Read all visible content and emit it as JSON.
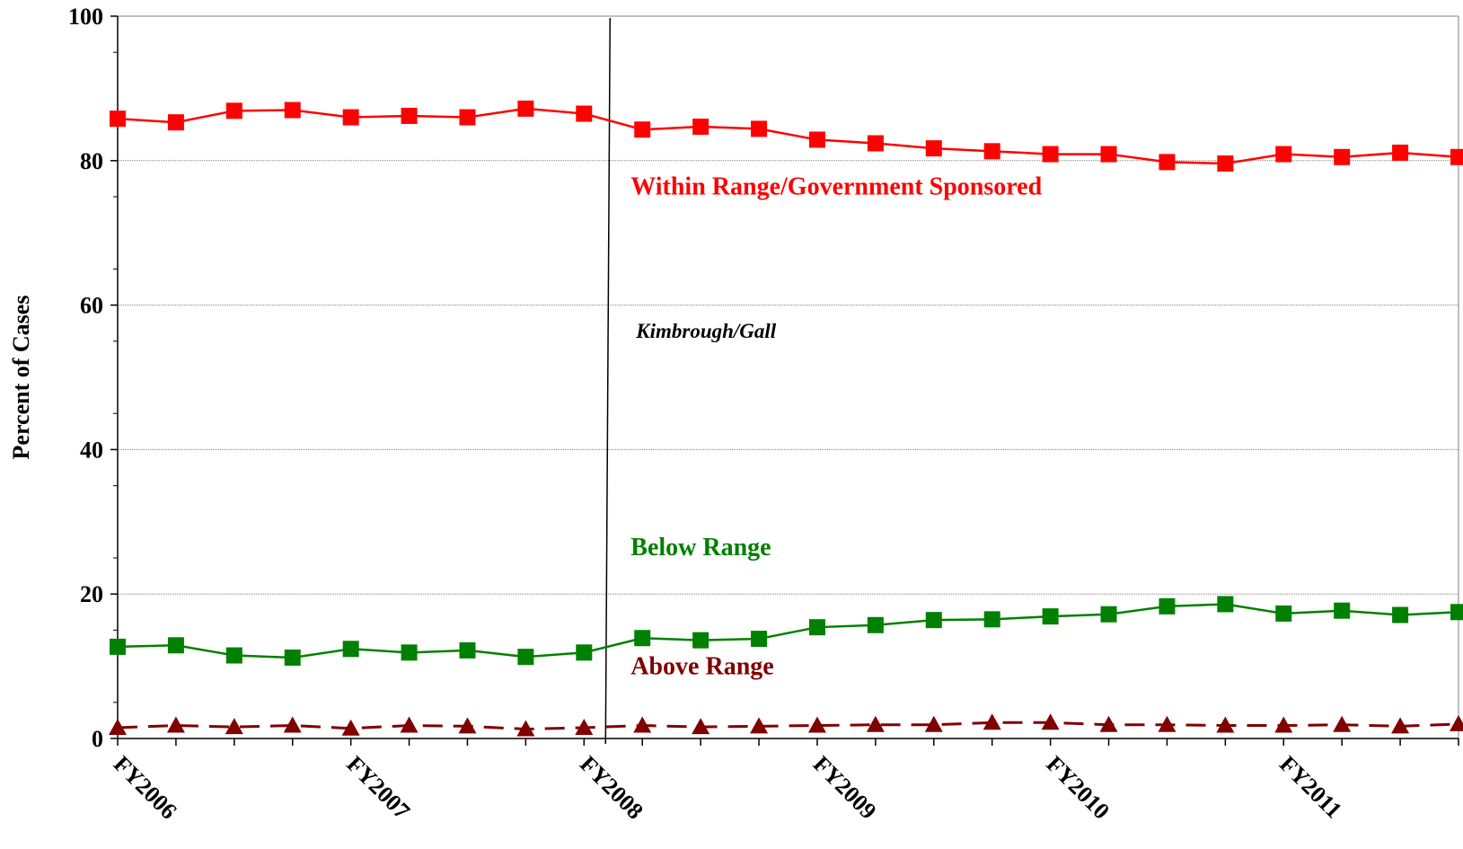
{
  "chart_data": {
    "type": "line",
    "title": "",
    "xlabel": "",
    "ylabel": "Percent of Cases",
    "ylim": [
      0,
      100
    ],
    "yticks": [
      0,
      20,
      40,
      60,
      80,
      100
    ],
    "x_tick_labels": [
      "FY2006",
      "FY2007",
      "FY2008",
      "FY2009",
      "FY2010",
      "FY2011"
    ],
    "grid": true,
    "quarters_per_label": 4,
    "series": [
      {
        "name": "Within Range/Government Sponsored",
        "color": "#ff0000",
        "marker": "square",
        "dash": "solid",
        "values": [
          85.8,
          85.3,
          86.9,
          87.0,
          86.0,
          86.2,
          86.0,
          87.2,
          86.5,
          84.3,
          84.7,
          84.4,
          82.9,
          82.4,
          81.7,
          81.3,
          80.9,
          80.9,
          79.8,
          79.6,
          80.9,
          80.5,
          81.1,
          80.5
        ]
      },
      {
        "name": "Below Range",
        "color": "#008000",
        "marker": "square",
        "dash": "solid",
        "values": [
          12.7,
          12.9,
          11.5,
          11.2,
          12.4,
          11.9,
          12.2,
          11.3,
          11.9,
          13.9,
          13.6,
          13.8,
          15.4,
          15.7,
          16.4,
          16.5,
          16.9,
          17.2,
          18.3,
          18.6,
          17.3,
          17.7,
          17.1,
          17.5
        ]
      },
      {
        "name": "Above Range",
        "color": "#800000",
        "marker": "triangle",
        "dash": "dashed",
        "values": [
          1.5,
          1.8,
          1.6,
          1.8,
          1.4,
          1.8,
          1.7,
          1.3,
          1.5,
          1.8,
          1.6,
          1.7,
          1.8,
          1.9,
          1.9,
          2.2,
          2.2,
          1.9,
          1.9,
          1.8,
          1.8,
          1.9,
          1.7,
          2.0
        ]
      }
    ],
    "event_marker": {
      "label": "Kimbrough/Gall",
      "after_index": 8.4
    }
  }
}
